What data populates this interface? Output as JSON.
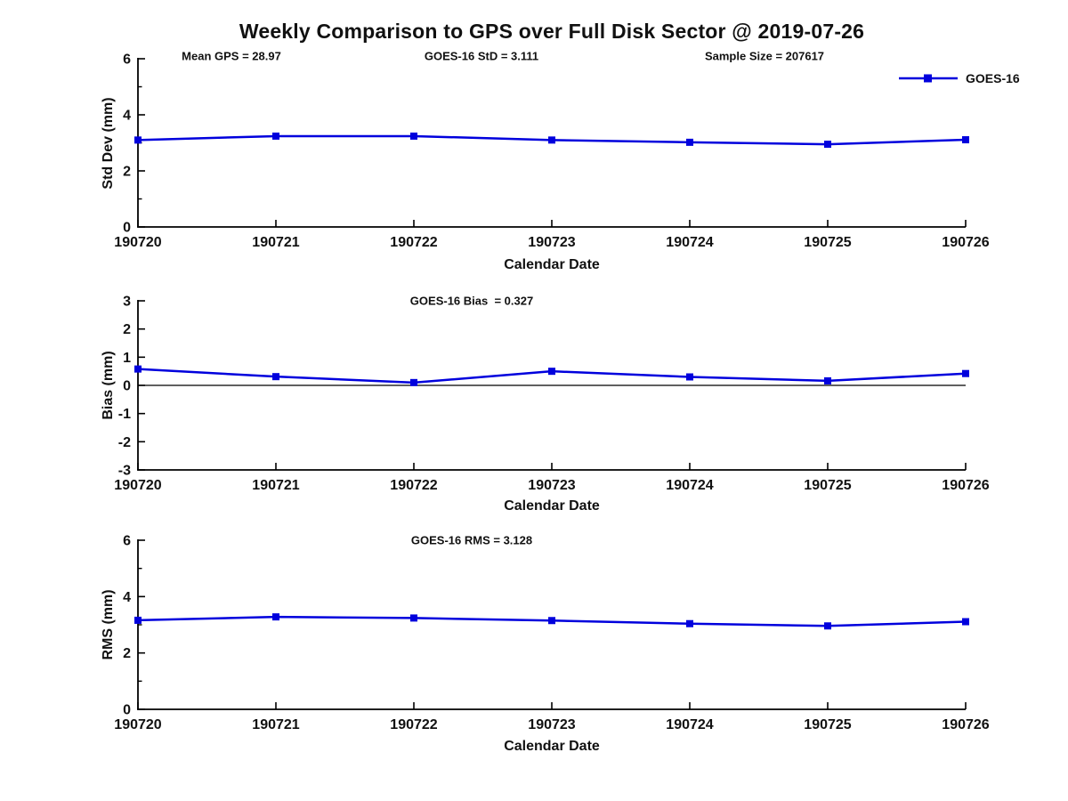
{
  "figure": {
    "title": "Weekly Comparison to GPS over Full Disk Sector @ 2019-07-26",
    "background": "#ffffff",
    "line_color": "#0000dd",
    "axis_color": "#000000",
    "text_color": "#111111"
  },
  "legend": {
    "label": "GOES-16",
    "position": "top-right",
    "marker": "filled-square",
    "color": "#0000dd"
  },
  "chart_data": [
    {
      "type": "line",
      "ylabel": "Std Dev (mm)",
      "xlabel": "Calendar Date",
      "categories": [
        "190720",
        "190721",
        "190722",
        "190723",
        "190724",
        "190725",
        "190726"
      ],
      "series": [
        {
          "name": "GOES-16",
          "values": [
            3.1,
            3.24,
            3.24,
            3.1,
            3.02,
            2.95,
            3.11
          ]
        }
      ],
      "ylim": [
        0,
        6
      ],
      "yticks": [
        0,
        2,
        4,
        6
      ],
      "yticks_minor": [
        1,
        3,
        5
      ],
      "zero_line": false,
      "grid": false,
      "annotations": [
        "Mean GPS = 28.97",
        "GOES-16 StD = 3.111",
        "Sample Size = 207617"
      ]
    },
    {
      "type": "line",
      "ylabel": "Bias (mm)",
      "xlabel": "Calendar Date",
      "categories": [
        "190720",
        "190721",
        "190722",
        "190723",
        "190724",
        "190725",
        "190726"
      ],
      "series": [
        {
          "name": "GOES-16",
          "values": [
            0.58,
            0.31,
            0.1,
            0.5,
            0.3,
            0.16,
            0.42
          ]
        }
      ],
      "ylim": [
        -3,
        3
      ],
      "yticks": [
        -3,
        -2,
        -1,
        0,
        1,
        2,
        3
      ],
      "yticks_minor": [],
      "zero_line": true,
      "grid": false,
      "annotations": [
        "GOES-16 Bias  = 0.327"
      ]
    },
    {
      "type": "line",
      "ylabel": "RMS (mm)",
      "xlabel": "Calendar Date",
      "categories": [
        "190720",
        "190721",
        "190722",
        "190723",
        "190724",
        "190725",
        "190726"
      ],
      "series": [
        {
          "name": "GOES-16",
          "values": [
            3.16,
            3.28,
            3.24,
            3.15,
            3.04,
            2.96,
            3.11
          ]
        }
      ],
      "ylim": [
        0,
        6
      ],
      "yticks": [
        0,
        2,
        4,
        6
      ],
      "yticks_minor": [
        1,
        3,
        5
      ],
      "zero_line": false,
      "grid": false,
      "annotations": [
        "GOES-16 RMS = 3.128"
      ]
    }
  ]
}
